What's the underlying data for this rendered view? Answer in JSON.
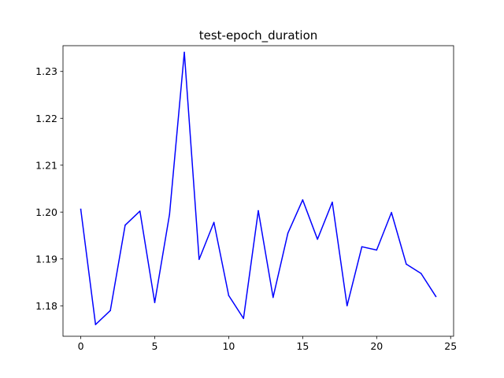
{
  "chart_data": {
    "type": "line",
    "title": "test-epoch_duration",
    "xlabel": "",
    "ylabel": "",
    "xlim": [
      -1.2,
      25.2
    ],
    "ylim": [
      1.1735,
      1.2355
    ],
    "xticks": [
      0,
      5,
      10,
      15,
      20,
      25
    ],
    "xtick_labels": [
      "0",
      "5",
      "10",
      "15",
      "20",
      "25"
    ],
    "yticks": [
      1.18,
      1.19,
      1.2,
      1.21,
      1.22,
      1.23
    ],
    "ytick_labels": [
      "1.18",
      "1.19",
      "1.20",
      "1.21",
      "1.22",
      "1.23"
    ],
    "grid": false,
    "series": [
      {
        "color": "#0000ff",
        "x": [
          0,
          1,
          2,
          3,
          4,
          5,
          6,
          7,
          8,
          9,
          10,
          11,
          12,
          13,
          14,
          15,
          16,
          17,
          18,
          19,
          20,
          21,
          22,
          23,
          24
        ],
        "values": [
          1.2006,
          1.176,
          1.179,
          1.1972,
          1.2002,
          1.1807,
          1.1995,
          1.2341,
          1.1899,
          1.1978,
          1.1822,
          1.1773,
          1.2003,
          1.1818,
          1.1955,
          1.2026,
          1.1942,
          1.2021,
          1.18,
          1.1926,
          1.1919,
          1.1999,
          1.1889,
          1.1869,
          1.182
        ]
      }
    ]
  }
}
